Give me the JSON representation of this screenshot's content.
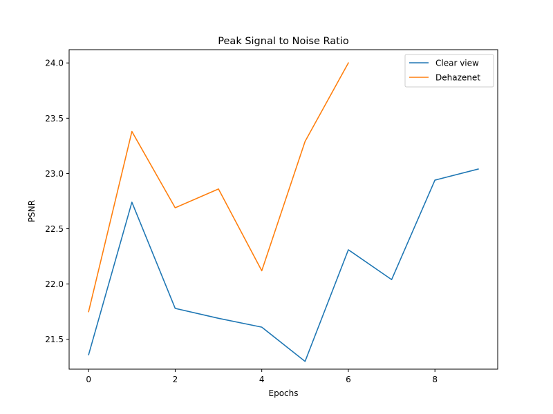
{
  "chart_data": {
    "type": "line",
    "title": "Peak Signal to Noise Ratio",
    "xlabel": "Epochs",
    "ylabel": "PSNR",
    "xlim": [
      -0.45,
      9.45
    ],
    "ylim": [
      21.23,
      24.12
    ],
    "xticks": [
      0,
      2,
      4,
      6,
      8
    ],
    "yticks": [
      21.5,
      22.0,
      22.5,
      23.0,
      23.5,
      24.0
    ],
    "xtick_labels": [
      "0",
      "2",
      "4",
      "6",
      "8"
    ],
    "ytick_labels": [
      "21.5",
      "22.0",
      "22.5",
      "23.0",
      "23.5",
      "24.0"
    ],
    "grid": false,
    "legend": "top-right",
    "series": [
      {
        "name": "Clear view",
        "color": "#1f77b4",
        "x": [
          0,
          1,
          2,
          3,
          4,
          5,
          6,
          7,
          8,
          9
        ],
        "values": [
          21.36,
          22.74,
          21.78,
          21.69,
          21.61,
          21.3,
          22.31,
          22.04,
          22.94,
          23.04
        ]
      },
      {
        "name": "Dehazenet",
        "color": "#ff7f0e",
        "x": [
          0,
          1,
          2,
          3,
          4,
          5,
          6
        ],
        "values": [
          21.75,
          23.38,
          22.69,
          22.86,
          22.12,
          23.29,
          24.0
        ]
      }
    ]
  }
}
